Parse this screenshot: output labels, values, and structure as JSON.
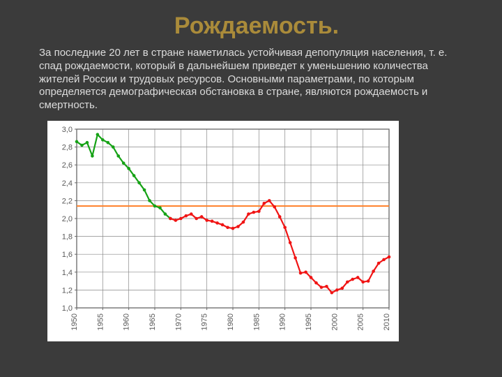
{
  "title": "Рождаемость.",
  "paragraph": "За последние 20 лет в стране наметилась устойчивая депопуляция населения, т. е. спад рождаемости, который в дальнейшем приведет к уменьшению количества жителей России и трудовых ресурсов. Основными параметрами, по которым определяется демографическая обстановка в стране, являются рождаемость и смертность.",
  "chart": {
    "type": "line",
    "background_color": "#ffffff",
    "plot_border_color": "#666666",
    "grid_color": "#888888",
    "axis_font_size": 11,
    "axis_label_color": "#5a5a5a",
    "ylim": [
      1.0,
      3.0
    ],
    "ytick_step": 0.2,
    "yticks": [
      "1,0",
      "1,2",
      "1,4",
      "1,6",
      "1,8",
      "2,0",
      "2,2",
      "2,4",
      "2,6",
      "2,8",
      "3,0"
    ],
    "xlim": [
      1950,
      2010
    ],
    "xticks": [
      1950,
      1955,
      1960,
      1965,
      1970,
      1975,
      1980,
      1985,
      1990,
      1995,
      2000,
      2005,
      2010
    ],
    "reference_line": {
      "y": 2.14,
      "color": "#ff7f27",
      "width": 2
    },
    "series_green": {
      "color": "#16a216",
      "width": 2.2,
      "marker_color": "#16a216",
      "marker_size": 2.3,
      "points": [
        [
          1950,
          2.86
        ],
        [
          1951,
          2.82
        ],
        [
          1952,
          2.85
        ],
        [
          1953,
          2.7
        ],
        [
          1954,
          2.94
        ],
        [
          1955,
          2.88
        ],
        [
          1956,
          2.85
        ],
        [
          1957,
          2.8
        ],
        [
          1958,
          2.7
        ],
        [
          1959,
          2.62
        ],
        [
          1960,
          2.56
        ],
        [
          1961,
          2.48
        ],
        [
          1962,
          2.4
        ],
        [
          1963,
          2.32
        ],
        [
          1964,
          2.2
        ],
        [
          1965,
          2.14
        ],
        [
          1966,
          2.12
        ],
        [
          1967,
          2.05
        ],
        [
          1968,
          2.0
        ]
      ]
    },
    "series_red": {
      "color": "#f01414",
      "width": 2.2,
      "marker_color": "#f01414",
      "marker_size": 2.3,
      "points": [
        [
          1968,
          2.0
        ],
        [
          1969,
          1.98
        ],
        [
          1970,
          2.0
        ],
        [
          1971,
          2.03
        ],
        [
          1972,
          2.05
        ],
        [
          1973,
          2.0
        ],
        [
          1974,
          2.02
        ],
        [
          1975,
          1.98
        ],
        [
          1976,
          1.97
        ],
        [
          1977,
          1.95
        ],
        [
          1978,
          1.93
        ],
        [
          1979,
          1.9
        ],
        [
          1980,
          1.89
        ],
        [
          1981,
          1.91
        ],
        [
          1982,
          1.96
        ],
        [
          1983,
          2.05
        ],
        [
          1984,
          2.07
        ],
        [
          1985,
          2.08
        ],
        [
          1986,
          2.17
        ],
        [
          1987,
          2.2
        ],
        [
          1988,
          2.13
        ],
        [
          1989,
          2.02
        ],
        [
          1990,
          1.9
        ],
        [
          1991,
          1.73
        ],
        [
          1992,
          1.56
        ],
        [
          1993,
          1.39
        ],
        [
          1994,
          1.4
        ],
        [
          1995,
          1.34
        ],
        [
          1996,
          1.28
        ],
        [
          1997,
          1.23
        ],
        [
          1998,
          1.24
        ],
        [
          1999,
          1.17
        ],
        [
          2000,
          1.2
        ],
        [
          2001,
          1.22
        ],
        [
          2002,
          1.29
        ],
        [
          2003,
          1.32
        ],
        [
          2004,
          1.34
        ],
        [
          2005,
          1.29
        ],
        [
          2006,
          1.3
        ],
        [
          2007,
          1.41
        ],
        [
          2008,
          1.5
        ],
        [
          2009,
          1.54
        ],
        [
          2010,
          1.57
        ]
      ]
    }
  }
}
